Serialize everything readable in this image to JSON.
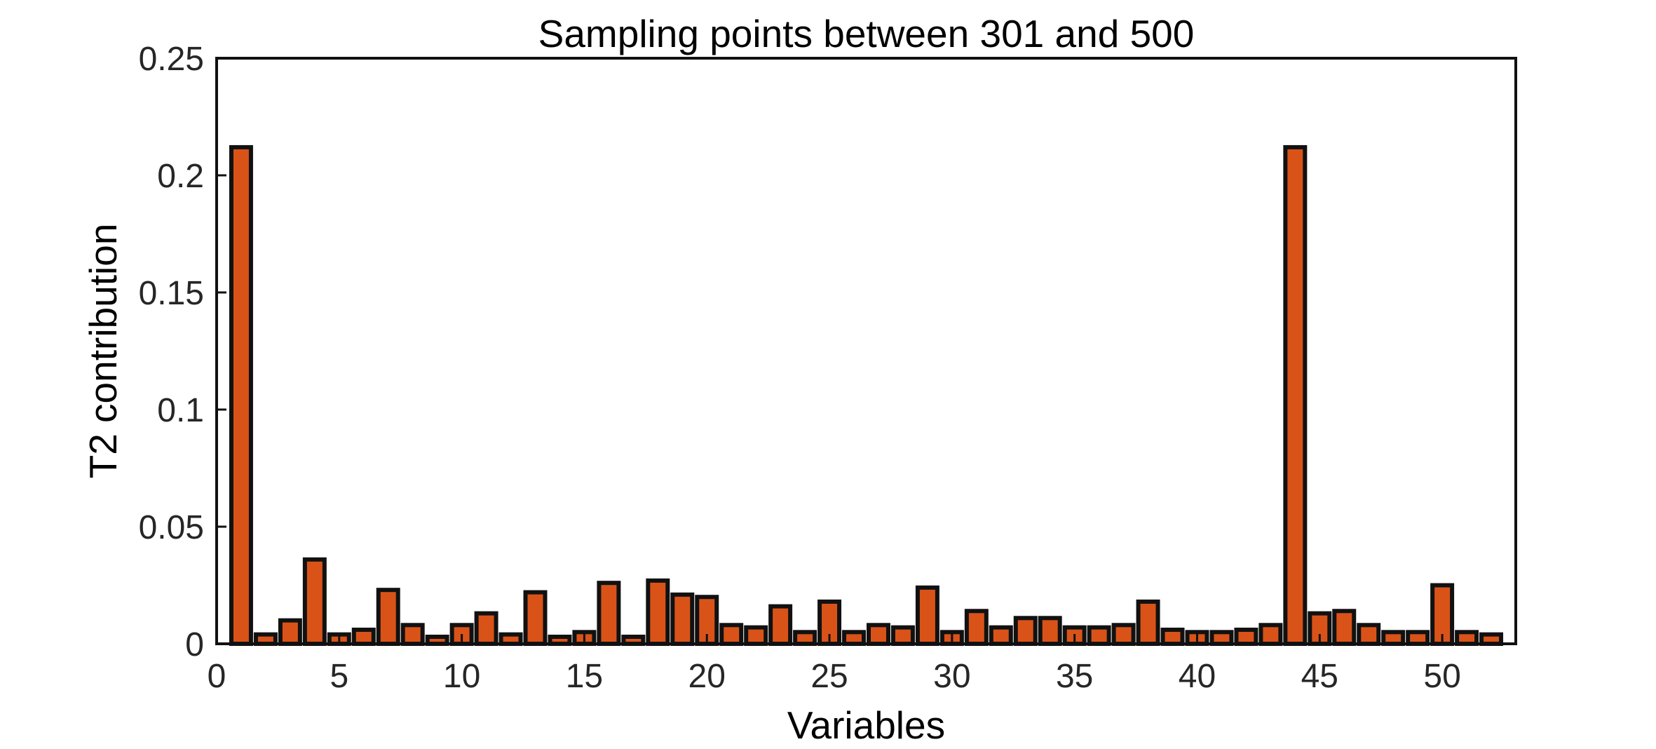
{
  "chart_data": {
    "type": "bar",
    "title": "Sampling points between 301 and 500",
    "xlabel": "Variables",
    "ylabel": "T2 contribution",
    "xlim": [
      0,
      53
    ],
    "ylim": [
      0,
      0.25
    ],
    "x_ticks": [
      0,
      5,
      10,
      15,
      20,
      25,
      30,
      35,
      40,
      45,
      50
    ],
    "x_tick_labels": [
      "0",
      "5",
      "10",
      "15",
      "20",
      "25",
      "30",
      "35",
      "40",
      "45",
      "50"
    ],
    "y_ticks": [
      0,
      0.05,
      0.1,
      0.15,
      0.2,
      0.25
    ],
    "y_tick_labels": [
      "0",
      "0.05",
      "0.1",
      "0.15",
      "0.2",
      "0.25"
    ],
    "grid": false,
    "legend": "none",
    "bar_fill_color": "#D95319",
    "bar_edge_color": "#111111",
    "x": [
      1,
      2,
      3,
      4,
      5,
      6,
      7,
      8,
      9,
      10,
      11,
      12,
      13,
      14,
      15,
      16,
      17,
      18,
      19,
      20,
      21,
      22,
      23,
      24,
      25,
      26,
      27,
      28,
      29,
      30,
      31,
      32,
      33,
      34,
      35,
      36,
      37,
      38,
      39,
      40,
      41,
      42,
      43,
      44,
      45,
      46,
      47,
      48,
      49,
      50,
      51,
      52
    ],
    "values": [
      0.212,
      0.004,
      0.01,
      0.036,
      0.004,
      0.006,
      0.023,
      0.008,
      0.003,
      0.008,
      0.013,
      0.004,
      0.022,
      0.003,
      0.005,
      0.026,
      0.003,
      0.027,
      0.021,
      0.02,
      0.008,
      0.007,
      0.016,
      0.005,
      0.018,
      0.005,
      0.008,
      0.007,
      0.024,
      0.005,
      0.014,
      0.007,
      0.011,
      0.011,
      0.007,
      0.007,
      0.008,
      0.018,
      0.006,
      0.005,
      0.005,
      0.006,
      0.008,
      0.212,
      0.013,
      0.014,
      0.008,
      0.005,
      0.005,
      0.025,
      0.005,
      0.004
    ]
  }
}
